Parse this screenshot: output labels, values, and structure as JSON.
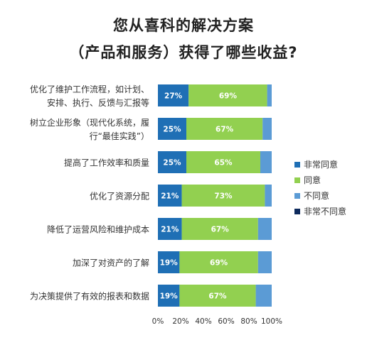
{
  "chart_data": {
    "type": "bar",
    "orientation": "horizontal",
    "stacked": true,
    "title": [
      "您从喜科的解决方案",
      "（产品和服务）获得了哪些收益?"
    ],
    "categories": [
      [
        "优化了维护工作流程，如计划、",
        "安排、执行、反馈与汇报等"
      ],
      [
        "树立企业形象（现代化系统，履",
        "行“最佳实践”）"
      ],
      [
        "提高了工作效率和质量"
      ],
      [
        "优化了资源分配"
      ],
      [
        "降低了运营风险和维护成本"
      ],
      [
        "加深了对资产的了解"
      ],
      [
        "为决策提供了有效的报表和数据"
      ]
    ],
    "series": [
      {
        "name": "非常同意",
        "color": "#1f6fb5",
        "values": [
          27,
          25,
          25,
          21,
          21,
          19,
          19
        ]
      },
      {
        "name": "同意",
        "color": "#92d050",
        "values": [
          69,
          67,
          65,
          73,
          67,
          69,
          67
        ]
      },
      {
        "name": "不同意",
        "color": "#5b9bd5",
        "values": [
          4,
          8,
          10,
          6,
          12,
          12,
          14
        ]
      },
      {
        "name": "非常不同意",
        "color": "#0d2a5c",
        "values": [
          0,
          0,
          0,
          0,
          0,
          0,
          0
        ]
      }
    ],
    "data_labels": [
      "非常同意",
      "同意"
    ],
    "xlim": [
      0,
      100
    ],
    "xticks": [
      "0%",
      "20%",
      "40%",
      "60%",
      "80%",
      "100%"
    ],
    "legend_position": "right",
    "grid": false
  }
}
